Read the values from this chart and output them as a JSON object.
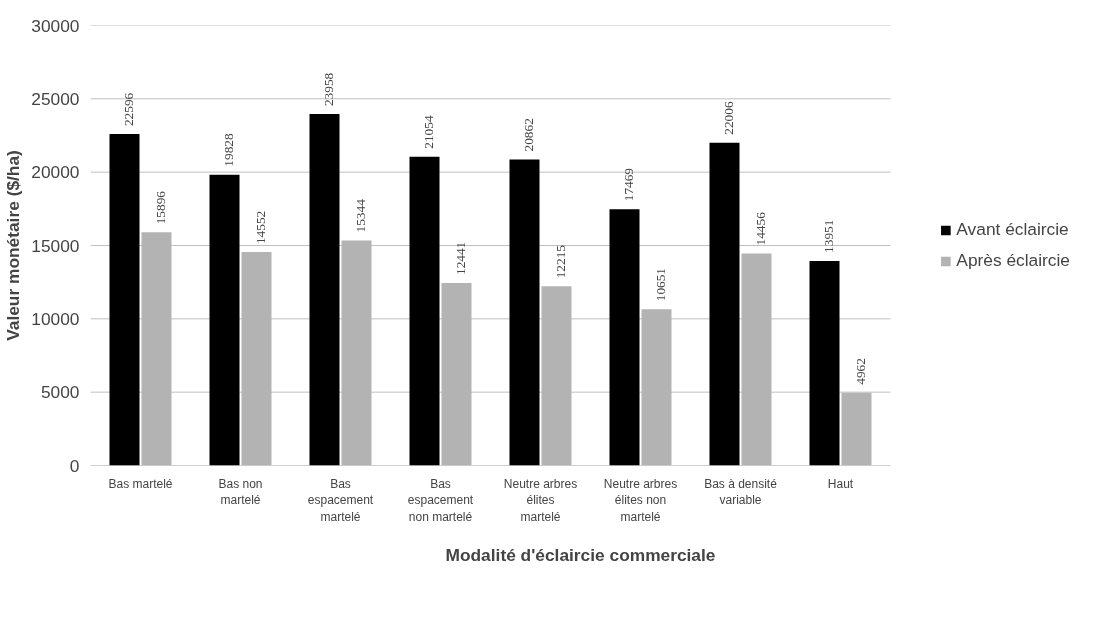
{
  "chart_data": {
    "type": "bar",
    "xlabel": "Modalité d'éclaircie commerciale",
    "ylabel": "Valeur monétaire ($/ha)",
    "categories": [
      "Bas martelé",
      "Bas non martelé",
      "Bas espacement martelé",
      "Bas espacement non martelé",
      "Neutre arbres élites martelé",
      "Neutre arbres élites non martelé",
      "Bas à densité variable",
      "Haut"
    ],
    "series": [
      {
        "name": "Avant éclaircie",
        "color": "#000000",
        "values": [
          22596,
          19828,
          23958,
          21054,
          20862,
          17469,
          22006,
          13951
        ]
      },
      {
        "name": "Après éclaircie",
        "color": "#b3b3b3",
        "values": [
          15896,
          14552,
          15344,
          12441,
          12215,
          10651,
          14456,
          4962
        ]
      }
    ],
    "ylim": [
      0,
      30000
    ],
    "yticks": [
      0,
      5000,
      10000,
      15000,
      20000,
      25000,
      30000
    ],
    "grid": "y",
    "legend": "right",
    "data_labels": true
  }
}
